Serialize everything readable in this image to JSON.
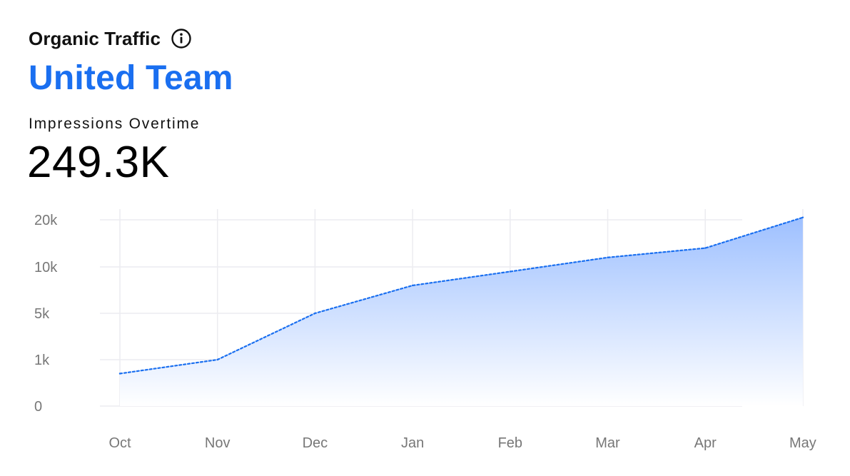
{
  "header": {
    "title": "Organic Traffic",
    "info_icon": "info-icon",
    "team_name": "United Team",
    "metric_label": "Impressions Overtime",
    "metric_value": "249.3K"
  },
  "colors": {
    "accent": "#1a6ff0",
    "line": "#1a6ff0",
    "area_top": "#9ec0ff",
    "area_bottom": "#ffffff",
    "grid": "#ececf0",
    "tick_label": "#777777"
  },
  "chart_data": {
    "type": "area",
    "x": [
      "Oct",
      "Nov",
      "Dec",
      "Jan",
      "Feb",
      "Mar",
      "Apr",
      "May"
    ],
    "y_ticks": [
      "0",
      "1k",
      "5k",
      "10k",
      "20k"
    ],
    "y_tick_values": [
      0,
      1000,
      5000,
      10000,
      20000
    ],
    "y_scale": "piecewise (ticks evenly spaced)",
    "series": [
      {
        "values": [
          700,
          1000,
          5000,
          8000,
          9500,
          12000,
          14000,
          20500
        ],
        "line_style": "dotted"
      }
    ],
    "xlabel": "",
    "ylabel": "",
    "grid": true,
    "legend": "none"
  }
}
